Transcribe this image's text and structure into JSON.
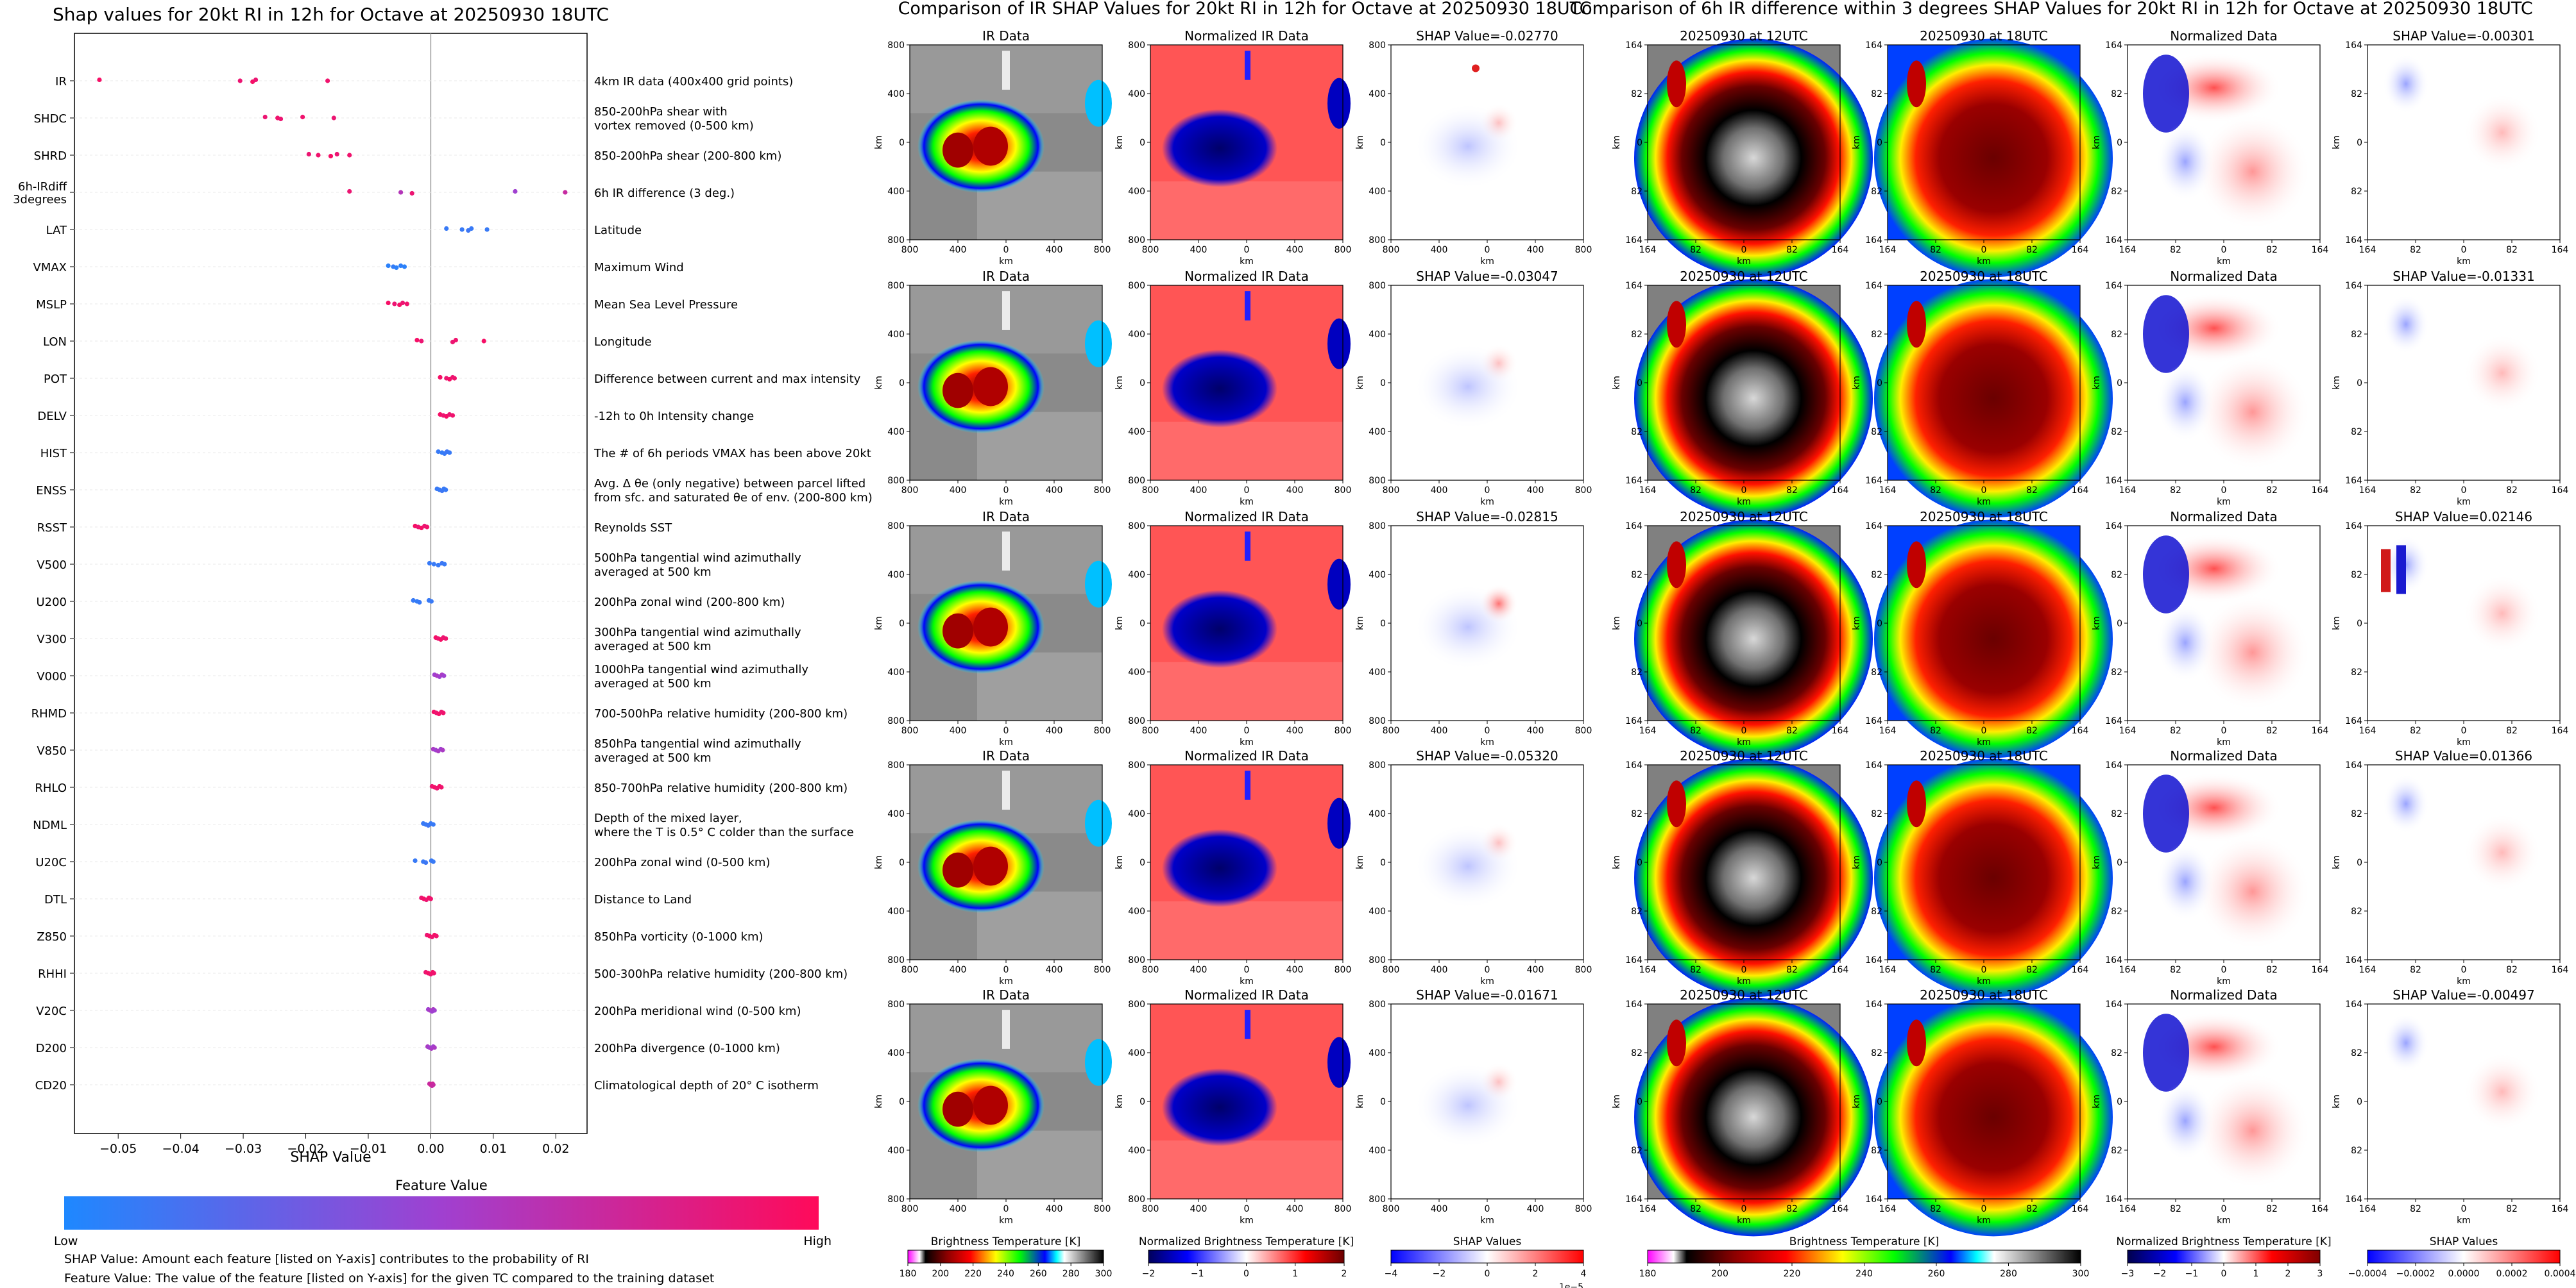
{
  "left_panel": {
    "title": "Shap values for 20kt RI in 12h for Octave at 20250930 18UTC",
    "xlabel": "SHAP Value",
    "colorbar_title": "Feature Value",
    "colorbar_low": "Low",
    "colorbar_high": "High",
    "note1": "SHAP Value: Amount each feature [listed on Y-axis] contributes to the probability of RI",
    "note2": "Feature Value: The value of the feature [listed on Y-axis] for the given TC compared to the training dataset",
    "colors": {
      "low": "#1e88ff",
      "mid": "#a040d0",
      "high": "#ff0a5a",
      "zero_line": "#999999",
      "grid": "#e8e8e8"
    }
  },
  "chart_data": [
    {
      "type": "scatter",
      "title": "Shap values for 20kt RI in 12h for Octave at 20250930 18UTC",
      "xlabel": "SHAP Value",
      "xlim": [
        -0.057,
        0.025
      ],
      "xticks": [
        -0.05,
        -0.04,
        -0.03,
        -0.02,
        -0.01,
        0.0,
        0.01,
        0.02
      ],
      "xtick_labels": [
        "−0.05",
        "−0.04",
        "−0.03",
        "−0.02",
        "−0.01",
        "0.00",
        "0.01",
        "0.02"
      ],
      "features": [
        {
          "code": "IR",
          "desc": [
            "4km IR data (400x400 grid points)"
          ],
          "points": [
            [
              -0.053,
              0.95
            ],
            [
              -0.0305,
              0.9
            ],
            [
              -0.0285,
              0.95
            ],
            [
              -0.028,
              0.9
            ],
            [
              -0.0165,
              0.92
            ]
          ]
        },
        {
          "code": "SHDC",
          "desc": [
            "850-200hPa shear with",
            "vortex removed (0-500 km)"
          ],
          "points": [
            [
              -0.0265,
              0.9
            ],
            [
              -0.0245,
              0.92
            ],
            [
              -0.024,
              0.9
            ],
            [
              -0.0205,
              0.92
            ],
            [
              -0.0155,
              0.9
            ]
          ]
        },
        {
          "code": "SHRD",
          "desc": [
            "850-200hPa shear (200-800 km)"
          ],
          "points": [
            [
              -0.0195,
              0.9
            ],
            [
              -0.018,
              0.92
            ],
            [
              -0.016,
              0.95
            ],
            [
              -0.015,
              0.9
            ],
            [
              -0.013,
              0.92
            ]
          ]
        },
        {
          "code": "6h-IRdiff 3degrees",
          "desc": [
            "6h IR difference (3 deg.)"
          ],
          "points": [
            [
              -0.013,
              0.9
            ],
            [
              -0.0048,
              0.6
            ],
            [
              -0.003,
              0.9
            ],
            [
              0.0135,
              0.5
            ],
            [
              0.0215,
              0.7
            ]
          ]
        },
        {
          "code": "LAT",
          "desc": [
            "Latitude"
          ],
          "points": [
            [
              0.0025,
              0.1
            ],
            [
              0.005,
              0.1
            ],
            [
              0.006,
              0.12
            ],
            [
              0.0065,
              0.1
            ],
            [
              0.009,
              0.1
            ]
          ]
        },
        {
          "code": "VMAX",
          "desc": [
            "Maximum Wind"
          ],
          "points": [
            [
              -0.0068,
              0.05
            ],
            [
              -0.006,
              0.08
            ],
            [
              -0.0055,
              0.05
            ],
            [
              -0.0048,
              0.06
            ],
            [
              -0.0042,
              0.05
            ]
          ]
        },
        {
          "code": "MSLP",
          "desc": [
            "Mean Sea Level Pressure"
          ],
          "points": [
            [
              -0.0068,
              0.95
            ],
            [
              -0.0058,
              0.9
            ],
            [
              -0.005,
              0.95
            ],
            [
              -0.0045,
              0.9
            ],
            [
              -0.0038,
              0.92
            ]
          ]
        },
        {
          "code": "LON",
          "desc": [
            "Longitude"
          ],
          "points": [
            [
              -0.0022,
              0.95
            ],
            [
              -0.0015,
              0.9
            ],
            [
              0.0035,
              0.9
            ],
            [
              0.004,
              0.92
            ],
            [
              0.0085,
              0.95
            ]
          ]
        },
        {
          "code": "POT",
          "desc": [
            "Difference between current and max intensity"
          ],
          "points": [
            [
              0.0015,
              0.95
            ],
            [
              0.0025,
              0.9
            ],
            [
              0.003,
              0.95
            ],
            [
              0.0035,
              0.9
            ],
            [
              0.0038,
              0.92
            ]
          ]
        },
        {
          "code": "DELV",
          "desc": [
            "-12h to 0h Intensity change"
          ],
          "points": [
            [
              0.0015,
              0.95
            ],
            [
              0.002,
              0.9
            ],
            [
              0.0025,
              0.95
            ],
            [
              0.003,
              0.9
            ],
            [
              0.0035,
              0.92
            ]
          ]
        },
        {
          "code": "HIST",
          "desc": [
            "The # of 6h periods VMAX has been above 20kt"
          ],
          "points": [
            [
              0.0012,
              0.1
            ],
            [
              0.0018,
              0.08
            ],
            [
              0.0022,
              0.1
            ],
            [
              0.0026,
              0.12
            ],
            [
              0.003,
              0.1
            ]
          ]
        },
        {
          "code": "ENSS",
          "desc": [
            "Avg. Δ θe (only negative) between parcel lifted",
            "from sfc. and saturated θe of env. (200-800 km)"
          ],
          "points": [
            [
              0.001,
              0.1
            ],
            [
              0.0014,
              0.1
            ],
            [
              0.0018,
              0.12
            ],
            [
              0.0021,
              0.1
            ],
            [
              0.0024,
              0.1
            ]
          ]
        },
        {
          "code": "RSST",
          "desc": [
            "Reynolds SST"
          ],
          "points": [
            [
              -0.0025,
              0.95
            ],
            [
              -0.002,
              0.9
            ],
            [
              -0.0015,
              0.95
            ],
            [
              -0.001,
              0.9
            ],
            [
              -0.0006,
              0.92
            ]
          ]
        },
        {
          "code": "V500",
          "desc": [
            "500hPa tangential wind azimuthally",
            "averaged at 500 km"
          ],
          "points": [
            [
              -0.0002,
              0.1
            ],
            [
              0.0005,
              0.1
            ],
            [
              0.0012,
              0.1
            ],
            [
              0.0018,
              0.12
            ],
            [
              0.0022,
              0.1
            ]
          ]
        },
        {
          "code": "U200",
          "desc": [
            "200hPa zonal wind (200-800 km)"
          ],
          "points": [
            [
              -0.0028,
              0.1
            ],
            [
              -0.0022,
              0.08
            ],
            [
              -0.0018,
              0.1
            ],
            [
              -0.0003,
              0.1
            ],
            [
              0.0001,
              0.1
            ]
          ]
        },
        {
          "code": "V300",
          "desc": [
            "300hPa tangential wind azimuthally",
            "averaged at 500 km"
          ],
          "points": [
            [
              0.0008,
              0.95
            ],
            [
              0.0012,
              0.9
            ],
            [
              0.0016,
              0.95
            ],
            [
              0.002,
              0.9
            ],
            [
              0.0024,
              0.92
            ]
          ]
        },
        {
          "code": "V000",
          "desc": [
            "1000hPa tangential wind azimuthally",
            "averaged at 500 km"
          ],
          "points": [
            [
              0.0006,
              0.5
            ],
            [
              0.001,
              0.55
            ],
            [
              0.0014,
              0.5
            ],
            [
              0.0018,
              0.55
            ],
            [
              0.0021,
              0.5
            ]
          ]
        },
        {
          "code": "RHMD",
          "desc": [
            "700-500hPa relative humidity (200-800 km)"
          ],
          "points": [
            [
              0.0005,
              0.95
            ],
            [
              0.0009,
              0.9
            ],
            [
              0.0013,
              0.95
            ],
            [
              0.0017,
              0.9
            ],
            [
              0.002,
              0.92
            ]
          ]
        },
        {
          "code": "V850",
          "desc": [
            "850hPa tangential wind azimuthally",
            "averaged at 500 km"
          ],
          "points": [
            [
              0.0004,
              0.55
            ],
            [
              0.0008,
              0.5
            ],
            [
              0.0012,
              0.55
            ],
            [
              0.0016,
              0.5
            ],
            [
              0.0019,
              0.55
            ]
          ]
        },
        {
          "code": "RHLO",
          "desc": [
            "850-700hPa relative humidity (200-800 km)"
          ],
          "points": [
            [
              0.0002,
              0.9
            ],
            [
              0.0006,
              0.95
            ],
            [
              0.001,
              0.9
            ],
            [
              0.0014,
              0.95
            ],
            [
              0.0017,
              0.92
            ]
          ]
        },
        {
          "code": "NDML",
          "desc": [
            "Depth of the mixed layer,",
            "where the T is 0.5° C colder than the surface"
          ],
          "points": [
            [
              -0.0012,
              0.1
            ],
            [
              -0.0008,
              0.1
            ],
            [
              -0.0004,
              0.12
            ],
            [
              0.0,
              0.1
            ],
            [
              0.0004,
              0.1
            ]
          ]
        },
        {
          "code": "U20C",
          "desc": [
            "200hPa zonal wind (0-500 km)"
          ],
          "points": [
            [
              -0.0025,
              0.1
            ],
            [
              -0.0012,
              0.1
            ],
            [
              -0.0008,
              0.12
            ],
            [
              0.0001,
              0.1
            ],
            [
              0.0004,
              0.1
            ]
          ]
        },
        {
          "code": "DTL",
          "desc": [
            "Distance to Land"
          ],
          "points": [
            [
              -0.0015,
              0.9
            ],
            [
              -0.0011,
              0.95
            ],
            [
              -0.0007,
              0.9
            ],
            [
              -0.0003,
              0.95
            ],
            [
              0.0,
              0.92
            ]
          ]
        },
        {
          "code": "Z850",
          "desc": [
            "850hPa vorticity (0-1000 km)"
          ],
          "points": [
            [
              -0.0006,
              0.9
            ],
            [
              -0.0002,
              0.95
            ],
            [
              0.0002,
              0.9
            ],
            [
              0.0006,
              0.95
            ],
            [
              0.0009,
              0.92
            ]
          ]
        },
        {
          "code": "RHHI",
          "desc": [
            "500-300hPa relative humidity (200-800 km)"
          ],
          "points": [
            [
              -0.0008,
              0.9
            ],
            [
              -0.0004,
              0.95
            ],
            [
              0.0,
              0.9
            ],
            [
              0.0003,
              0.95
            ],
            [
              0.0005,
              0.92
            ]
          ]
        },
        {
          "code": "V20C",
          "desc": [
            "200hPa meridional wind (0-500 km)"
          ],
          "points": [
            [
              -0.0004,
              0.5
            ],
            [
              -0.0001,
              0.55
            ],
            [
              0.0002,
              0.5
            ],
            [
              0.0004,
              0.55
            ],
            [
              0.0006,
              0.5
            ]
          ]
        },
        {
          "code": "D200",
          "desc": [
            "200hPa divergence (0-1000 km)"
          ],
          "points": [
            [
              -0.0005,
              0.55
            ],
            [
              -0.0002,
              0.5
            ],
            [
              0.0001,
              0.55
            ],
            [
              0.0004,
              0.5
            ],
            [
              0.0006,
              0.55
            ]
          ]
        },
        {
          "code": "CD20",
          "desc": [
            "Climatological depth of 20° C isotherm"
          ],
          "points": [
            [
              -0.0002,
              0.7
            ],
            [
              0.0,
              0.75
            ],
            [
              0.0002,
              0.7
            ],
            [
              0.0003,
              0.75
            ],
            [
              0.0004,
              0.7
            ]
          ]
        }
      ]
    },
    {
      "type": "heatmap",
      "title": "Comparison of IR SHAP Values for 20kt RI in 12h for Octave at 20250930 18UTC",
      "column_titles": [
        "IR Data",
        "Normalized IR Data"
      ],
      "shap_values": [
        "SHAP Value=-0.02770",
        "SHAP Value=-0.03047",
        "SHAP Value=-0.02815",
        "SHAP Value=-0.05320",
        "SHAP Value=-0.01671"
      ],
      "xlabel": "km",
      "ylabel": "km",
      "xtick_labels": [
        "800",
        "400",
        "0",
        "400",
        "800"
      ],
      "ytick_labels": [
        "800",
        "400",
        "0",
        "400",
        "800"
      ],
      "colorbars": [
        {
          "label": "Brightness Temperature [K]",
          "ticks": [
            "180",
            "200",
            "220",
            "240",
            "260",
            "280",
            "300"
          ]
        },
        {
          "label": "Normalized Brightness Temperature [K]",
          "ticks": [
            "−2",
            "−1",
            "0",
            "1",
            "2"
          ]
        },
        {
          "label": "SHAP Values",
          "ticks": [
            "−4",
            "−2",
            "0",
            "2",
            "4"
          ],
          "exponent": "1e−5"
        }
      ]
    },
    {
      "type": "heatmap",
      "title": "Comparison of 6h IR difference within 3 degrees SHAP Values for 20kt RI in 12h for Octave at 20250930 18UTC",
      "column_titles": [
        "20250930 at 12UTC",
        "20250930 at 18UTC",
        "Normalized Data"
      ],
      "shap_values": [
        "SHAP Value=-0.00301",
        "SHAP Value=-0.01331",
        "SHAP Value=0.02146",
        "SHAP Value=0.01366",
        "SHAP Value=-0.00497"
      ],
      "xlabel": "km",
      "ylabel": "km",
      "xtick_labels": [
        "164",
        "82",
        "0",
        "82",
        "164"
      ],
      "ytick_labels": [
        "164",
        "82",
        "0",
        "82",
        "164"
      ],
      "colorbars": [
        {
          "label": "Brightness Temperature [K]",
          "ticks": [
            "180",
            "200",
            "220",
            "240",
            "260",
            "280",
            "300"
          ]
        },
        {
          "label": "Normalized Brightness Temperature [K]",
          "ticks": [
            "−3",
            "−2",
            "−1",
            "0",
            "1",
            "2",
            "3"
          ]
        },
        {
          "label": "SHAP Values",
          "ticks": [
            "−0.0004",
            "−0.0002",
            "0.0000",
            "0.0002",
            "0.0004"
          ]
        }
      ]
    }
  ]
}
